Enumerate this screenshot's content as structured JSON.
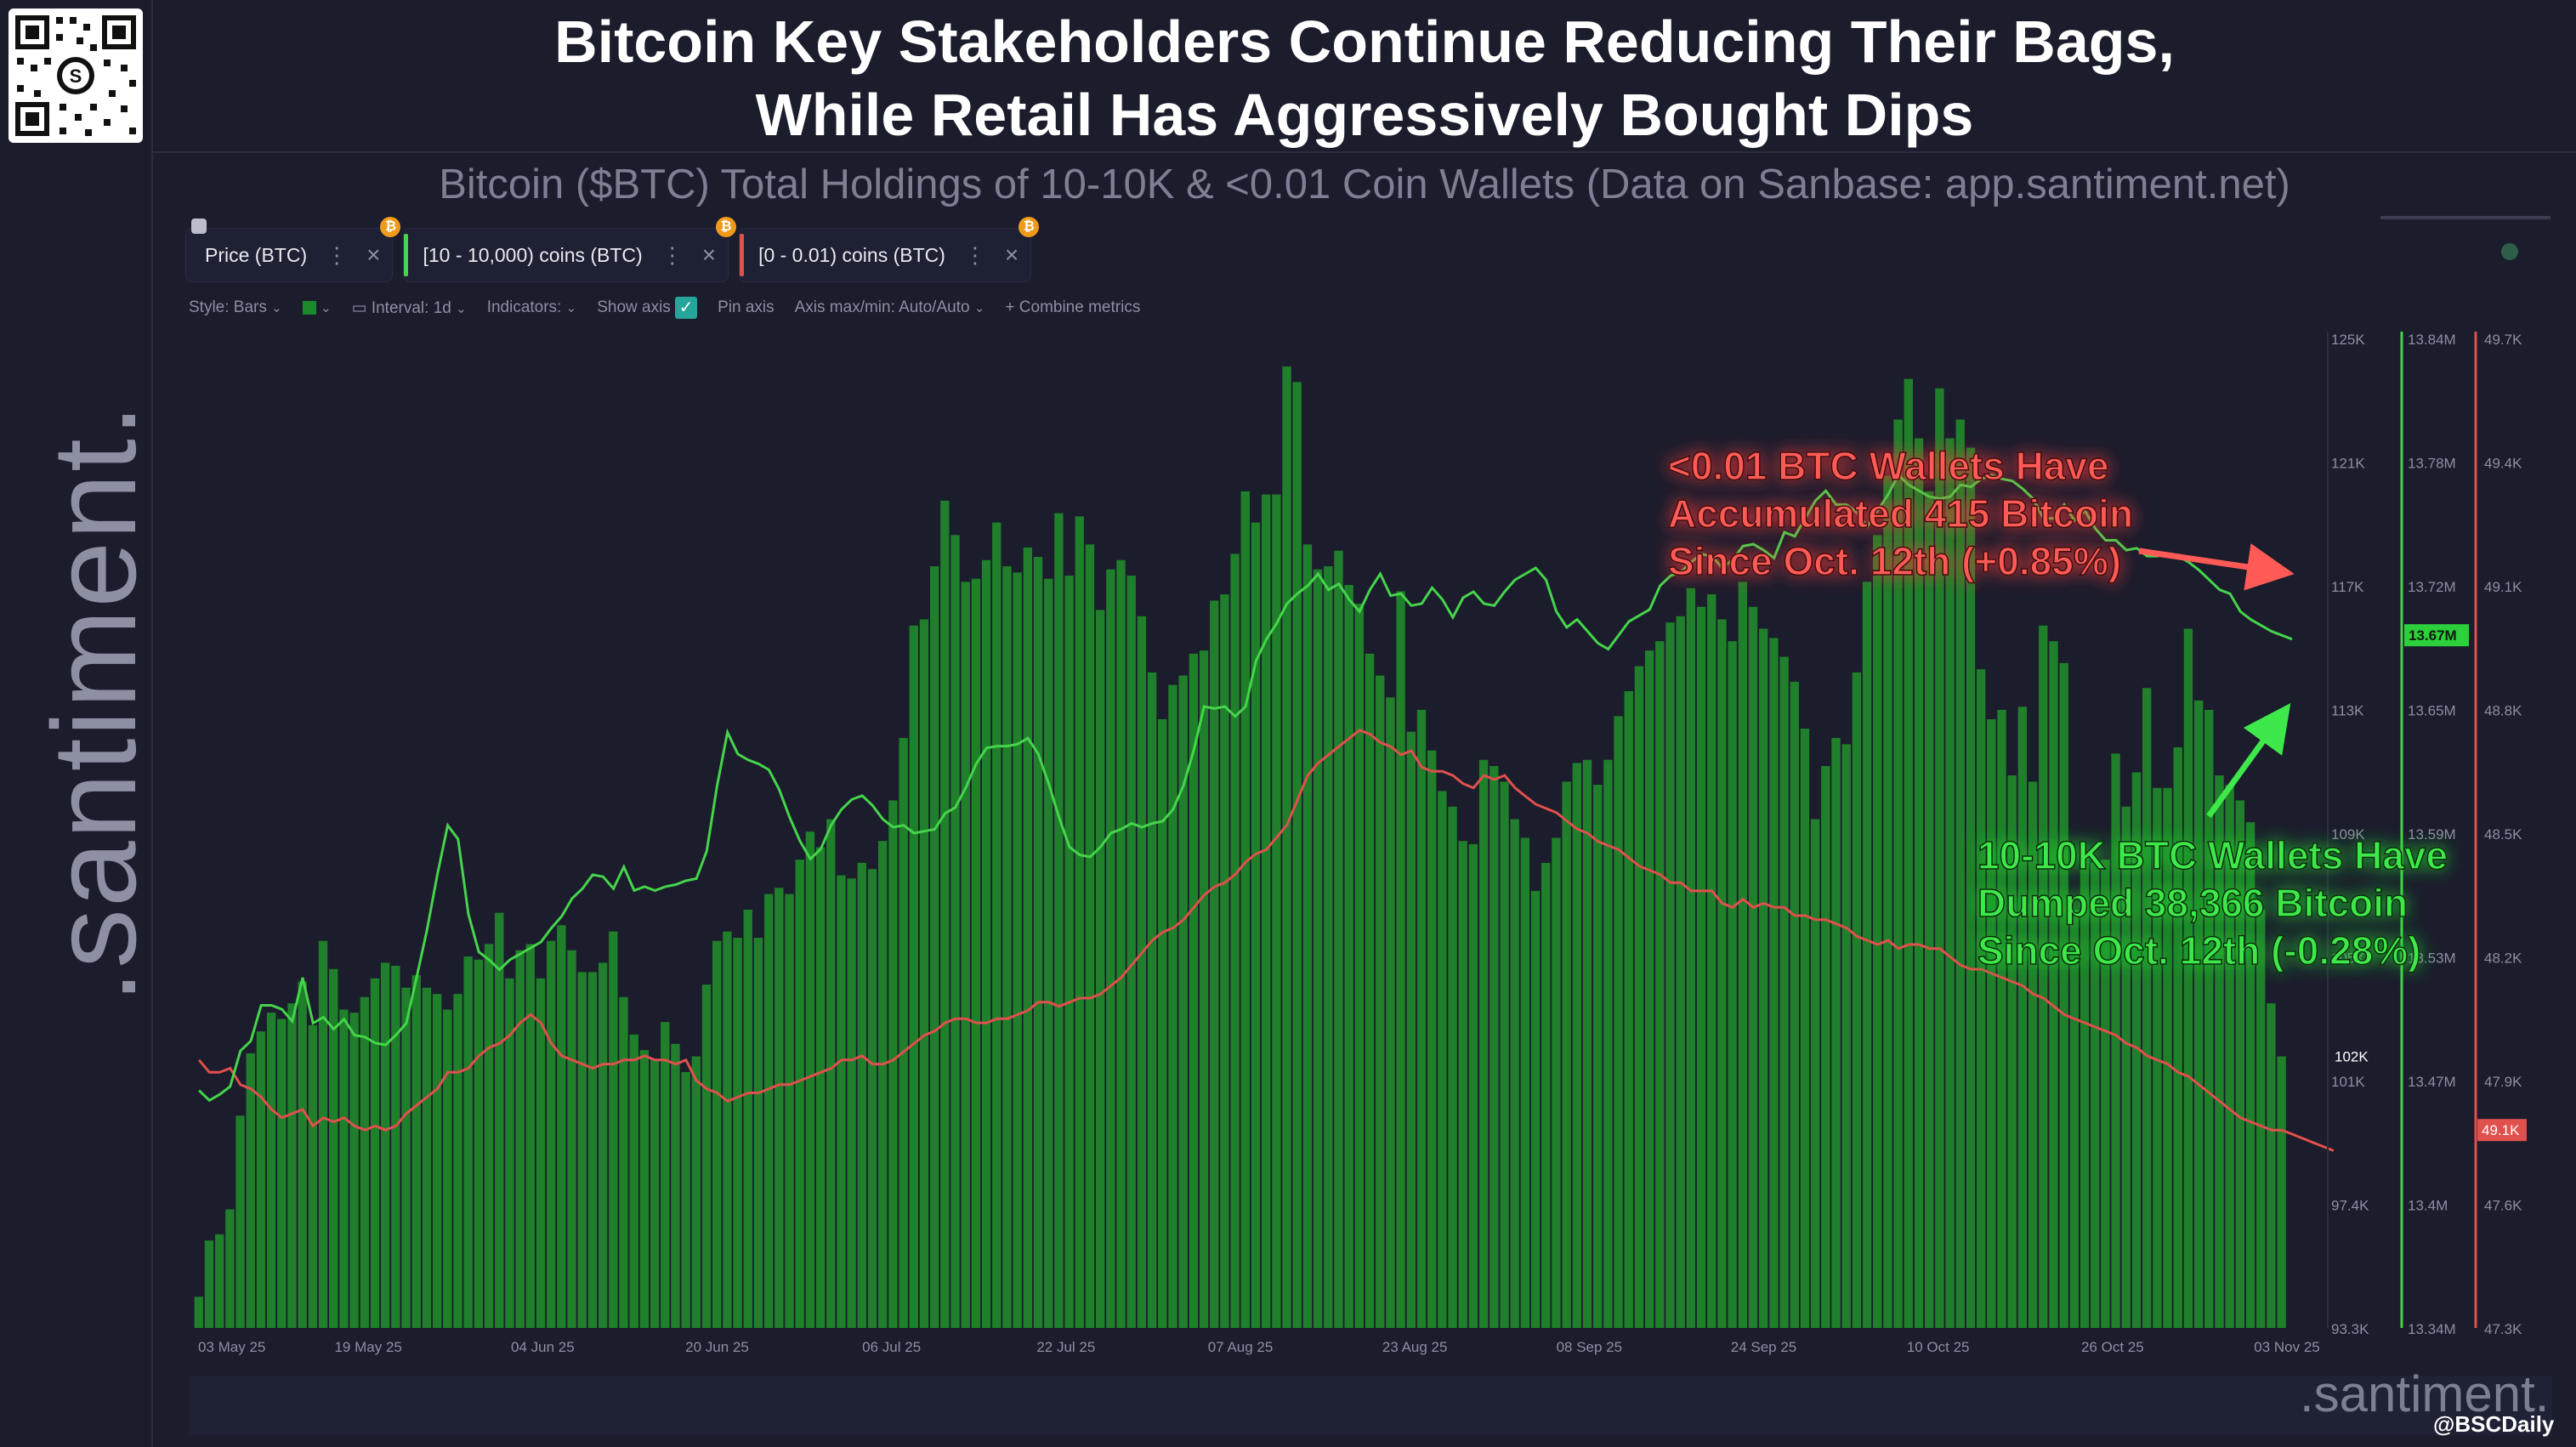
{
  "header": {
    "title_line1": "Bitcoin Key Stakeholders Continue Reducing Their Bags,",
    "title_line2": "While Retail Has Aggressively Bought Dips",
    "subtitle": "Bitcoin ($BTC) Total Holdings of 10-10K & <0.01 Coin Wallets (Data on Sanbase: app.santiment.net)"
  },
  "watermark": {
    "side": ".santiment.",
    "bottom": ".santiment.",
    "credit": "@BSCDaily"
  },
  "tabs": [
    {
      "label": "Price (BTC)",
      "color": "#ffffff",
      "badge": "₿"
    },
    {
      "label": "[10 - 10,000) coins (BTC)",
      "color": "#45d44b",
      "badge": "₿"
    },
    {
      "label": "[0 - 0.01) coins (BTC)",
      "color": "#e0504c",
      "badge": "₿"
    }
  ],
  "toolbar": {
    "style": "Style: Bars",
    "interval": "Interval: 1d",
    "indicators": "Indicators:",
    "show_axis": "Show axis",
    "pin_axis": "Pin axis",
    "axis_maxmin": "Axis max/min: Auto/Auto",
    "combine": "+ Combine metrics"
  },
  "annotations": {
    "red": [
      "<0.01 BTC Wallets Have",
      "Accumulated 415 Bitcoin",
      "Since Oct. 12th (+0.85%)"
    ],
    "green": [
      "10-10K BTC Wallets Have",
      "Dumped 38,366 Bitcoin",
      "Since Oct. 12th (-0.28%)"
    ]
  },
  "chart_data": {
    "type": "bar",
    "x_labels": [
      "03 May 25",
      "19 May 25",
      "04 Jun 25",
      "20 Jun 25",
      "06 Jul 25",
      "22 Jul 25",
      "07 Aug 25",
      "23 Aug 25",
      "08 Sep 25",
      "24 Sep 25",
      "10 Oct 25",
      "26 Oct 25",
      "03 Nov 25"
    ],
    "axes": {
      "price": {
        "ticks": [
          "125K",
          "121K",
          "117K",
          "113K",
          "109K",
          "105K",
          "101K",
          "97.4K",
          "93.3K"
        ],
        "range": [
          93300,
          125000
        ],
        "current": "102K"
      },
      "whales": {
        "ticks": [
          "13.84M",
          "13.78M",
          "13.72M",
          "13.65M",
          "13.59M",
          "13.53M",
          "13.47M",
          "13.4M",
          "13.34M"
        ],
        "range": [
          13340000,
          13840000
        ],
        "current": "13.67M",
        "color": "#45d44b"
      },
      "retail": {
        "ticks": [
          "49.7K",
          "49.4K",
          "49.1K",
          "48.8K",
          "48.5K",
          "48.2K",
          "47.9K",
          "47.6K",
          "47.3K"
        ],
        "range": [
          47300,
          49700
        ],
        "current": "49.1K",
        "color": "#e0504c"
      }
    },
    "series": [
      {
        "name": "Price (BTC)",
        "type": "bar",
        "color": "#1f7f2a",
        "values": [
          94300,
          96100,
          96300,
          97100,
          100100,
          102100,
          102800,
          103400,
          103200,
          103700,
          104400,
          103000,
          105700,
          104800,
          103500,
          103400,
          103900,
          104500,
          105000,
          104900,
          104200,
          104600,
          104200,
          104000,
          103500,
          104000,
          105200,
          105100,
          105600,
          106600,
          104500,
          105400,
          105600,
          104500,
          105700,
          106200,
          105400,
          104700,
          104700,
          105000,
          106000,
          103900,
          102700,
          102200,
          101900,
          103100,
          102400,
          101500,
          102000,
          104300,
          105700,
          106000,
          105800,
          106700,
          105800,
          107200,
          107400,
          107200,
          108300,
          109200,
          108700,
          109600,
          107800,
          107700,
          108200,
          108000,
          108900,
          110200,
          112200,
          115800,
          116000,
          117700,
          119800,
          118700,
          117200,
          117300,
          117900,
          119100,
          117700,
          117500,
          118300,
          118000,
          117300,
          119400,
          117400,
          119300,
          118400,
          116300,
          117600,
          117900,
          117400,
          116100,
          114300,
          112800,
          113900,
          114200,
          114900,
          115000,
          116600,
          116800,
          118100,
          120100,
          119100,
          120000,
          120000,
          124100,
          123600,
          118400,
          117600,
          117700,
          118200,
          117100,
          116500,
          114900,
          114200,
          113500,
          116900,
          112400,
          113100,
          111800,
          110500,
          110000,
          108900,
          108800,
          111500,
          111300,
          110800,
          109600,
          109000,
          107300,
          108200,
          109000,
          110800,
          111400,
          111500,
          110700,
          111500,
          112900,
          113700,
          114500,
          115000,
          115300,
          115900,
          116100,
          117000,
          116400,
          116800,
          116000,
          115300,
          117200,
          116400,
          115700,
          115400,
          114800,
          114000,
          112500,
          109600,
          111300,
          112200,
          112000,
          114300,
          117200,
          118700,
          120600,
          122400,
          123700,
          121800,
          120100,
          123400,
          121800,
          122400,
          121500,
          114400,
          112800,
          113100,
          111000,
          113200,
          110800,
          115800,
          115300,
          114600,
          106700,
          108400,
          108200,
          108300,
          111700,
          110000,
          111100,
          113800,
          110600,
          110600,
          111900,
          115700,
          113400,
          113100,
          111000,
          110700,
          110200,
          109500,
          106700,
          103700,
          102000
        ]
      },
      {
        "name": "[10 - 10,000) coins (BTC)",
        "type": "line",
        "color": "#45d44b",
        "values": [
          13460000,
          13455000,
          13458000,
          13462000,
          13480000,
          13485000,
          13503000,
          13503000,
          13501000,
          13495000,
          13517000,
          13494000,
          13497000,
          13491000,
          13496000,
          13488000,
          13487000,
          13484000,
          13483000,
          13488000,
          13494000,
          13517000,
          13541000,
          13569000,
          13594000,
          13587000,
          13549000,
          13530000,
          13526000,
          13521000,
          13526000,
          13529000,
          13532000,
          13535000,
          13542000,
          13548000,
          13557000,
          13562000,
          13569000,
          13568000,
          13562000,
          13573000,
          13561000,
          13563000,
          13561000,
          13563000,
          13564000,
          13566000,
          13567000,
          13581000,
          13614000,
          13641000,
          13630000,
          13627000,
          13625000,
          13622000,
          13612000,
          13598000,
          13586000,
          13577000,
          13582000,
          13594000,
          13602000,
          13607000,
          13609000,
          13604000,
          13597000,
          13593000,
          13594000,
          13590000,
          13591000,
          13592000,
          13600000,
          13603000,
          13613000,
          13625000,
          13633000,
          13634000,
          13634000,
          13635000,
          13638000,
          13630000,
          13615000,
          13598000,
          13583000,
          13579000,
          13578000,
          13583000,
          13590000,
          13592000,
          13595000,
          13593000,
          13595000,
          13596000,
          13602000,
          13614000,
          13632000,
          13654000,
          13653000,
          13654000,
          13649000,
          13654000,
          13677000,
          13688000,
          13696000,
          13706000,
          13711000,
          13715000,
          13721000,
          13713000,
          13716000,
          13708000,
          13702000,
          13713000,
          13721000,
          13710000,
          13711000,
          13705000,
          13706000,
          13714000,
          13708000,
          13699000,
          13709000,
          13712000,
          13706000,
          13705000,
          13712000,
          13718000,
          13721000,
          13724000,
          13718000,
          13702000,
          13694000,
          13698000,
          13692000,
          13686000,
          13683000,
          13690000,
          13697000,
          13700000,
          13703000,
          13715000,
          13720000,
          13722000,
          13727000,
          13731000,
          13730000,
          13724000,
          13728000,
          13735000,
          13736000,
          13733000,
          13729000,
          13742000,
          13740000,
          13749000,
          13758000,
          13763000,
          13756000,
          13756000,
          13752000,
          13745000,
          13753000,
          13761000,
          13771000,
          13766000,
          13763000,
          13760000,
          13759000,
          13760000,
          13766000,
          13765000,
          13769000,
          13771000,
          13769000,
          13768000,
          13764000,
          13759000,
          13749000,
          13749000,
          13756000,
          13748000,
          13753000,
          13744000,
          13738000,
          13738000,
          13733000,
          13734000,
          13730000,
          13730000,
          13731000,
          13730000,
          13727000,
          13723000,
          13718000,
          13713000,
          13711000,
          13702000,
          13698000,
          13695000,
          13692000,
          13690000,
          13688000
        ]
      },
      {
        "name": "[0 - 0.01) coins (BTC)",
        "type": "line",
        "color": "#e0504c",
        "values": [
          47950,
          47920,
          47920,
          47930,
          47890,
          47880,
          47860,
          47830,
          47810,
          47820,
          47830,
          47790,
          47810,
          47800,
          47810,
          47790,
          47780,
          47790,
          47780,
          47790,
          47820,
          47840,
          47860,
          47880,
          47920,
          47920,
          47930,
          47960,
          47980,
          47990,
          48010,
          48040,
          48060,
          48040,
          47990,
          47960,
          47950,
          47940,
          47930,
          47940,
          47940,
          47950,
          47950,
          47960,
          47950,
          47950,
          47940,
          47950,
          47900,
          47880,
          47870,
          47850,
          47860,
          47870,
          47870,
          47880,
          47890,
          47890,
          47900,
          47910,
          47920,
          47930,
          47950,
          47950,
          47960,
          47940,
          47940,
          47950,
          47970,
          47990,
          48010,
          48020,
          48040,
          48050,
          48050,
          48040,
          48040,
          48050,
          48050,
          48060,
          48070,
          48090,
          48090,
          48080,
          48090,
          48100,
          48100,
          48110,
          48130,
          48150,
          48180,
          48210,
          48240,
          48260,
          48270,
          48290,
          48320,
          48350,
          48370,
          48380,
          48400,
          48430,
          48450,
          48460,
          48490,
          48520,
          48580,
          48640,
          48670,
          48690,
          48710,
          48730,
          48750,
          48740,
          48720,
          48710,
          48690,
          48700,
          48660,
          48650,
          48650,
          48640,
          48620,
          48610,
          48640,
          48630,
          48640,
          48610,
          48590,
          48570,
          48560,
          48550,
          48530,
          48510,
          48500,
          48480,
          48470,
          48460,
          48440,
          48420,
          48410,
          48400,
          48380,
          48380,
          48360,
          48360,
          48360,
          48330,
          48320,
          48340,
          48320,
          48330,
          48320,
          48320,
          48300,
          48300,
          48290,
          48290,
          48280,
          48270,
          48250,
          48240,
          48230,
          48240,
          48220,
          48230,
          48230,
          48220,
          48220,
          48200,
          48180,
          48170,
          48170,
          48160,
          48150,
          48140,
          48130,
          48110,
          48100,
          48080,
          48060,
          48050,
          48040,
          48030,
          48020,
          48010,
          47990,
          47980,
          47960,
          47950,
          47940,
          47920,
          47910,
          47890,
          47870,
          47850,
          47830,
          47810,
          47800,
          47790,
          47780,
          47780,
          47770,
          47760,
          47750,
          47740,
          47730
        ]
      }
    ]
  }
}
